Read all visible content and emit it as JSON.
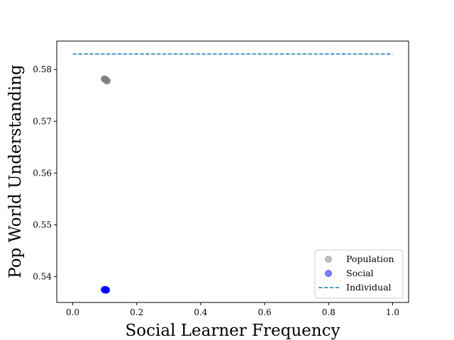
{
  "chart_data": {
    "type": "scatter",
    "title": "",
    "xlabel": "Social Learner Frequency",
    "ylabel": "Pop World Understanding",
    "xlim": [
      -0.05,
      1.05
    ],
    "ylim": [
      0.535,
      0.5855
    ],
    "xticks": [
      {
        "value": 0.0,
        "label": "0.0"
      },
      {
        "value": 0.2,
        "label": "0.2"
      },
      {
        "value": 0.4,
        "label": "0.4"
      },
      {
        "value": 0.6,
        "label": "0.6"
      },
      {
        "value": 0.8,
        "label": "0.8"
      },
      {
        "value": 1.0,
        "label": "1.0"
      }
    ],
    "yticks": [
      {
        "value": 0.54,
        "label": "0.54"
      },
      {
        "value": 0.55,
        "label": "0.55"
      },
      {
        "value": 0.56,
        "label": "0.56"
      },
      {
        "value": 0.57,
        "label": "0.57"
      },
      {
        "value": 0.58,
        "label": "0.58"
      }
    ],
    "grid": false,
    "legend_position": "lower-right",
    "series": [
      {
        "name": "Population",
        "kind": "scatter",
        "color": "#808080",
        "alpha": 0.5,
        "points": [
          {
            "x": 0.098,
            "y": 0.5782
          },
          {
            "x": 0.1,
            "y": 0.5782
          },
          {
            "x": 0.101,
            "y": 0.5781
          },
          {
            "x": 0.103,
            "y": 0.5781
          },
          {
            "x": 0.104,
            "y": 0.578
          },
          {
            "x": 0.105,
            "y": 0.5779
          },
          {
            "x": 0.107,
            "y": 0.5778
          },
          {
            "x": 0.108,
            "y": 0.5778
          }
        ]
      },
      {
        "name": "Social",
        "kind": "scatter",
        "color": "#0000ff",
        "alpha": 0.5,
        "points": [
          {
            "x": 0.098,
            "y": 0.5375
          },
          {
            "x": 0.1,
            "y": 0.5374
          },
          {
            "x": 0.101,
            "y": 0.5375
          },
          {
            "x": 0.102,
            "y": 0.5374
          },
          {
            "x": 0.103,
            "y": 0.5374
          },
          {
            "x": 0.104,
            "y": 0.5375
          },
          {
            "x": 0.105,
            "y": 0.5374
          },
          {
            "x": 0.106,
            "y": 0.5374
          }
        ]
      },
      {
        "name": "Individual",
        "kind": "dashed-line",
        "color": "#1f77b4",
        "points": [
          {
            "x": 0.0,
            "y": 0.583
          },
          {
            "x": 1.0,
            "y": 0.583
          }
        ]
      }
    ]
  }
}
